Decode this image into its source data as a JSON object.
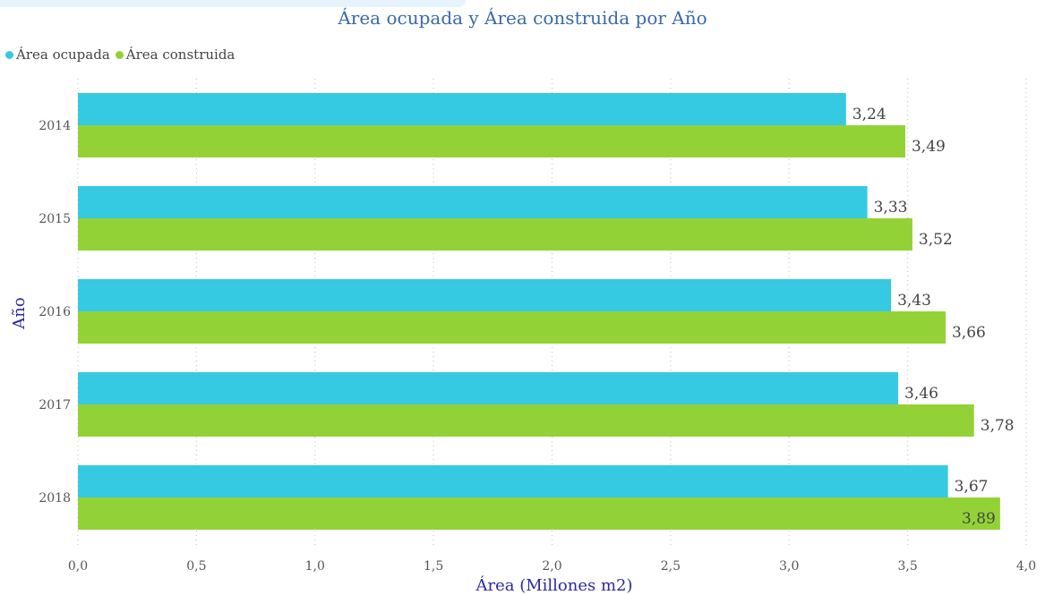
{
  "title": "Área ocupada y Área construida por Año",
  "colors": {
    "ocupada": "#36c9e2",
    "construida": "#93d236",
    "grid": "#c9c9c9"
  },
  "chart_data": {
    "type": "bar",
    "orientation": "horizontal",
    "title": "Área ocupada y Área construida por Año",
    "categories": [
      "2014",
      "2015",
      "2016",
      "2017",
      "2018"
    ],
    "series": [
      {
        "name": "Área ocupada",
        "values": [
          3.24,
          3.33,
          3.43,
          3.46,
          3.67
        ],
        "labels": [
          "3,24",
          "3,33",
          "3,43",
          "3,46",
          "3,67"
        ]
      },
      {
        "name": "Área construida",
        "values": [
          3.49,
          3.52,
          3.66,
          3.78,
          3.89
        ],
        "labels": [
          "3,49",
          "3,52",
          "3,66",
          "3,78",
          "3,89"
        ]
      }
    ],
    "xlabel": "Área (Millones m2)",
    "ylabel": "Año",
    "xlim": [
      0,
      4
    ],
    "xticks": [
      "0,0",
      "0,5",
      "1,0",
      "1,5",
      "2,0",
      "2,5",
      "3,0",
      "3,5",
      "4,0"
    ],
    "grid": true,
    "legend_position": "top-left"
  }
}
